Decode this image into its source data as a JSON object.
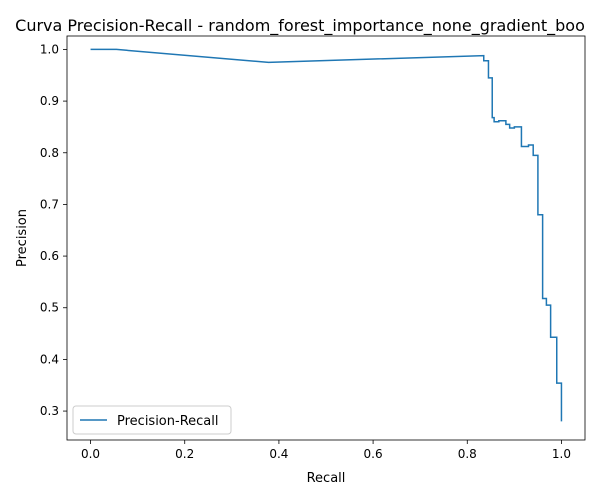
{
  "chart_data": {
    "type": "line",
    "title": "Curva Precision-Recall - random_forest_importance_none_gradient_boo",
    "xlabel": "Recall",
    "ylabel": "Precision",
    "xlim": [
      -0.05,
      1.05
    ],
    "ylim": [
      0.244,
      1.026
    ],
    "x_ticks": [
      {
        "value": 0.0,
        "label": "0.0"
      },
      {
        "value": 0.2,
        "label": "0.2"
      },
      {
        "value": 0.4,
        "label": "0.4"
      },
      {
        "value": 0.6,
        "label": "0.6"
      },
      {
        "value": 0.8,
        "label": "0.8"
      },
      {
        "value": 1.0,
        "label": "1.0"
      }
    ],
    "y_ticks": [
      {
        "value": 0.3,
        "label": "0.3"
      },
      {
        "value": 0.4,
        "label": "0.4"
      },
      {
        "value": 0.5,
        "label": "0.5"
      },
      {
        "value": 0.6,
        "label": "0.6"
      },
      {
        "value": 0.7,
        "label": "0.7"
      },
      {
        "value": 0.8,
        "label": "0.8"
      },
      {
        "value": 0.9,
        "label": "0.9"
      },
      {
        "value": 1.0,
        "label": "1.0"
      }
    ],
    "grid": false,
    "legend": {
      "position": "lower-left",
      "entries": [
        "Precision-Recall"
      ]
    },
    "series": [
      {
        "name": "Precision-Recall",
        "color": "#1f77b4",
        "x": [
          0.0,
          0.055,
          0.378,
          0.835,
          0.835,
          0.845,
          0.845,
          0.853,
          0.853,
          0.857,
          0.857,
          0.867,
          0.867,
          0.882,
          0.882,
          0.89,
          0.89,
          0.9,
          0.9,
          0.915,
          0.915,
          0.93,
          0.93,
          0.94,
          0.94,
          0.95,
          0.95,
          0.96,
          0.96,
          0.968,
          0.968,
          0.977,
          0.977,
          0.99,
          0.99,
          1.0,
          1.0
        ],
        "y": [
          1.0,
          1.0,
          0.975,
          0.988,
          0.978,
          0.978,
          0.945,
          0.945,
          0.868,
          0.868,
          0.86,
          0.86,
          0.862,
          0.862,
          0.855,
          0.855,
          0.848,
          0.848,
          0.85,
          0.85,
          0.812,
          0.812,
          0.815,
          0.815,
          0.795,
          0.795,
          0.68,
          0.68,
          0.518,
          0.518,
          0.505,
          0.505,
          0.443,
          0.443,
          0.354,
          0.354,
          0.28
        ]
      }
    ]
  }
}
